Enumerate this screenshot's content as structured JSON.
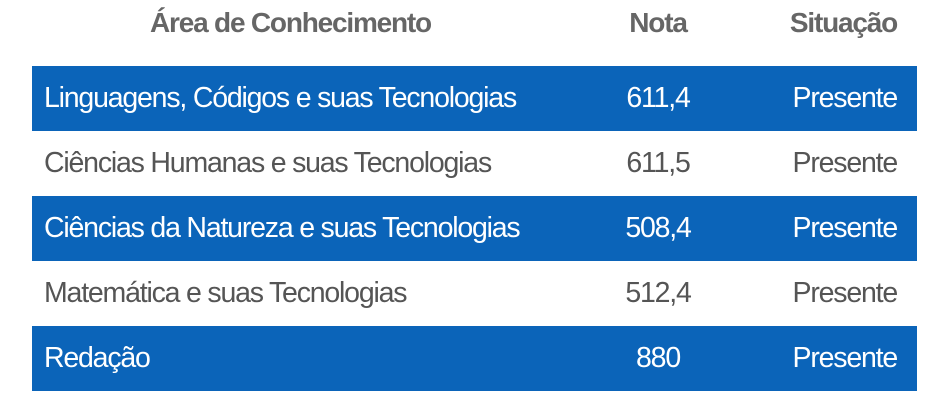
{
  "table": {
    "headers": {
      "area": "Área de Conhecimento",
      "nota": "Nota",
      "situacao": "Situação"
    },
    "rows": [
      {
        "area": "Linguagens, Códigos e suas Tecnologias",
        "nota": "611,4",
        "situacao": "Presente"
      },
      {
        "area": "Ciências Humanas e suas Tecnologias",
        "nota": "611,5",
        "situacao": "Presente"
      },
      {
        "area": "Ciências da Natureza e suas Tecnologias",
        "nota": "508,4",
        "situacao": "Presente"
      },
      {
        "area": "Matemática e suas Tecnologias",
        "nota": "512,4",
        "situacao": "Presente"
      },
      {
        "area": "Redação",
        "nota": "880",
        "situacao": "Presente"
      }
    ]
  },
  "colors": {
    "highlight_row": "#0b64b9",
    "header_text": "#666666",
    "plain_row_text": "#555555"
  }
}
